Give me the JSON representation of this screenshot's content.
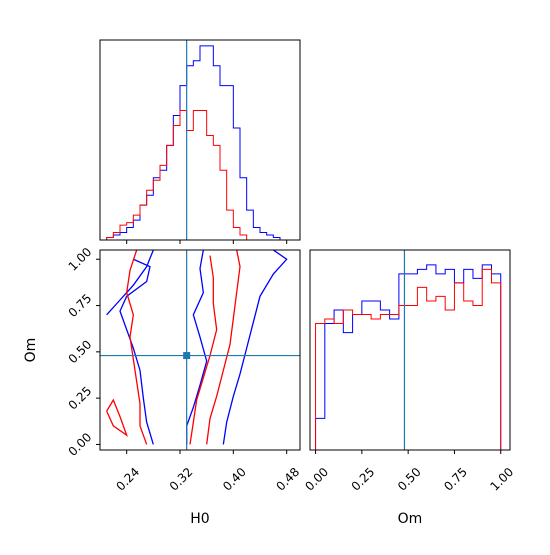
{
  "chart_data": {
    "type": "corner",
    "parameters": [
      "H0",
      "Om"
    ],
    "truths": {
      "H0": 0.33,
      "Om": 0.48
    },
    "colors": {
      "blue": "#0000ff",
      "red": "#ff0000",
      "truth": "#1f77b4"
    },
    "panels": [
      {
        "id": "hist-H0",
        "type": "histogram",
        "xlim": [
          0.2,
          0.5
        ],
        "x_ticks": [
          "0.24",
          "0.32",
          "0.40",
          "0.48"
        ],
        "x_tick_values": [
          0.24,
          0.32,
          0.4,
          0.48
        ],
        "bin_edges": [
          0.2,
          0.21,
          0.22,
          0.23,
          0.24,
          0.25,
          0.26,
          0.27,
          0.28,
          0.29,
          0.3,
          0.31,
          0.32,
          0.33,
          0.34,
          0.35,
          0.36,
          0.37,
          0.38,
          0.39,
          0.4,
          0.41,
          0.42,
          0.43,
          0.44,
          0.45,
          0.46,
          0.47,
          0.48,
          0.49,
          0.5
        ],
        "series": [
          {
            "color": "blue",
            "counts": [
              0,
              1,
              2,
              3,
              5,
              8,
              14,
              18,
              25,
              28,
              38,
              50,
              62,
              70,
              72,
              78,
              78,
              70,
              62,
              62,
              45,
              25,
              12,
              5,
              3,
              2,
              1,
              0,
              0,
              0
            ]
          },
          {
            "color": "red",
            "counts": [
              0,
              1,
              3,
              6,
              7,
              10,
              14,
              20,
              24,
              30,
              38,
              46,
              52,
              44,
              52,
              52,
              42,
              38,
              28,
              12,
              5,
              2,
              0,
              0,
              0,
              0,
              0,
              0,
              0,
              0
            ]
          }
        ]
      },
      {
        "id": "hist-Om",
        "type": "histogram",
        "xlim": [
          -0.03,
          1.05
        ],
        "x_ticks": [
          "0.00",
          "0.25",
          "0.50",
          "0.75",
          "1.00"
        ],
        "x_tick_values": [
          0.0,
          0.25,
          0.5,
          0.75,
          1.0
        ],
        "bin_edges": [
          0.0,
          0.05,
          0.1,
          0.15,
          0.2,
          0.25,
          0.3,
          0.35,
          0.4,
          0.45,
          0.5,
          0.55,
          0.6,
          0.65,
          0.7,
          0.75,
          0.8,
          0.85,
          0.9,
          0.95,
          1.0
        ],
        "series": [
          {
            "color": "blue",
            "counts": [
              14,
              56,
              62,
              52,
              60,
              66,
              66,
              62,
              58,
              78,
              78,
              80,
              82,
              78,
              80,
              74,
              80,
              76,
              82,
              78
            ]
          },
          {
            "color": "red",
            "counts": [
              56,
              58,
              56,
              62,
              60,
              60,
              58,
              60,
              60,
              64,
              64,
              72,
              66,
              68,
              62,
              74,
              66,
              64,
              80,
              74
            ]
          }
        ]
      },
      {
        "id": "joint-H0-Om",
        "type": "contour",
        "xlim": [
          0.2,
          0.5
        ],
        "ylim": [
          -0.03,
          1.05
        ],
        "x_ticks": [
          "0.24",
          "0.32",
          "0.40",
          "0.48"
        ],
        "x_tick_values": [
          0.24,
          0.32,
          0.4,
          0.48
        ],
        "y_ticks": [
          "0.00",
          "0.25",
          "0.50",
          "0.75",
          "1.00"
        ],
        "y_tick_values": [
          0.0,
          0.25,
          0.5,
          0.75,
          1.0
        ],
        "xlabel": "H0",
        "ylabel": "Om",
        "contours": [
          {
            "color": "blue",
            "points": [
              [
                0.28,
                0.0
              ],
              [
                0.27,
                0.12
              ],
              [
                0.265,
                0.25
              ],
              [
                0.26,
                0.4
              ],
              [
                0.25,
                0.52
              ],
              [
                0.24,
                0.62
              ],
              [
                0.23,
                0.72
              ],
              [
                0.24,
                0.8
              ],
              [
                0.27,
                0.88
              ],
              [
                0.275,
                0.96
              ],
              [
                0.25,
                1.0
              ]
            ]
          },
          {
            "color": "blue",
            "points": [
              [
                0.21,
                0.7
              ],
              [
                0.23,
                0.78
              ],
              [
                0.25,
                0.86
              ],
              [
                0.27,
                0.96
              ],
              [
                0.28,
                1.05
              ]
            ]
          },
          {
            "color": "blue",
            "points": [
              [
                0.33,
                0.0
              ],
              [
                0.33,
                0.1
              ],
              [
                0.34,
                0.2
              ],
              [
                0.35,
                0.32
              ],
              [
                0.36,
                0.45
              ],
              [
                0.35,
                0.58
              ],
              [
                0.34,
                0.7
              ],
              [
                0.355,
                0.82
              ],
              [
                0.35,
                0.95
              ],
              [
                0.355,
                1.05
              ]
            ]
          },
          {
            "color": "blue",
            "points": [
              [
                0.385,
                0.0
              ],
              [
                0.39,
                0.12
              ],
              [
                0.4,
                0.26
              ],
              [
                0.41,
                0.38
              ],
              [
                0.42,
                0.52
              ],
              [
                0.43,
                0.66
              ],
              [
                0.44,
                0.8
              ],
              [
                0.46,
                0.92
              ],
              [
                0.48,
                1.0
              ],
              [
                0.46,
                1.05
              ]
            ]
          },
          {
            "color": "red",
            "points": [
              [
                0.27,
                0.0
              ],
              [
                0.26,
                0.1
              ],
              [
                0.26,
                0.22
              ],
              [
                0.255,
                0.34
              ],
              [
                0.25,
                0.46
              ],
              [
                0.245,
                0.58
              ],
              [
                0.25,
                0.7
              ],
              [
                0.24,
                0.82
              ],
              [
                0.245,
                0.94
              ],
              [
                0.255,
                1.05
              ]
            ]
          },
          {
            "color": "red",
            "points": [
              [
                0.335,
                0.0
              ],
              [
                0.34,
                0.12
              ],
              [
                0.345,
                0.24
              ],
              [
                0.355,
                0.36
              ],
              [
                0.365,
                0.48
              ],
              [
                0.375,
                0.62
              ],
              [
                0.37,
                0.76
              ],
              [
                0.37,
                0.9
              ],
              [
                0.365,
                1.02
              ]
            ]
          },
          {
            "color": "red",
            "points": [
              [
                0.36,
                0.0
              ],
              [
                0.365,
                0.14
              ],
              [
                0.375,
                0.26
              ],
              [
                0.385,
                0.4
              ],
              [
                0.395,
                0.54
              ],
              [
                0.4,
                0.68
              ],
              [
                0.405,
                0.82
              ],
              [
                0.41,
                0.96
              ],
              [
                0.405,
                1.05
              ]
            ]
          },
          {
            "color": "red",
            "points": [
              [
                0.21,
                0.18
              ],
              [
                0.22,
                0.1
              ],
              [
                0.24,
                0.05
              ],
              [
                0.23,
                0.15
              ],
              [
                0.22,
                0.24
              ],
              [
                0.21,
                0.18
              ]
            ]
          }
        ]
      }
    ]
  }
}
